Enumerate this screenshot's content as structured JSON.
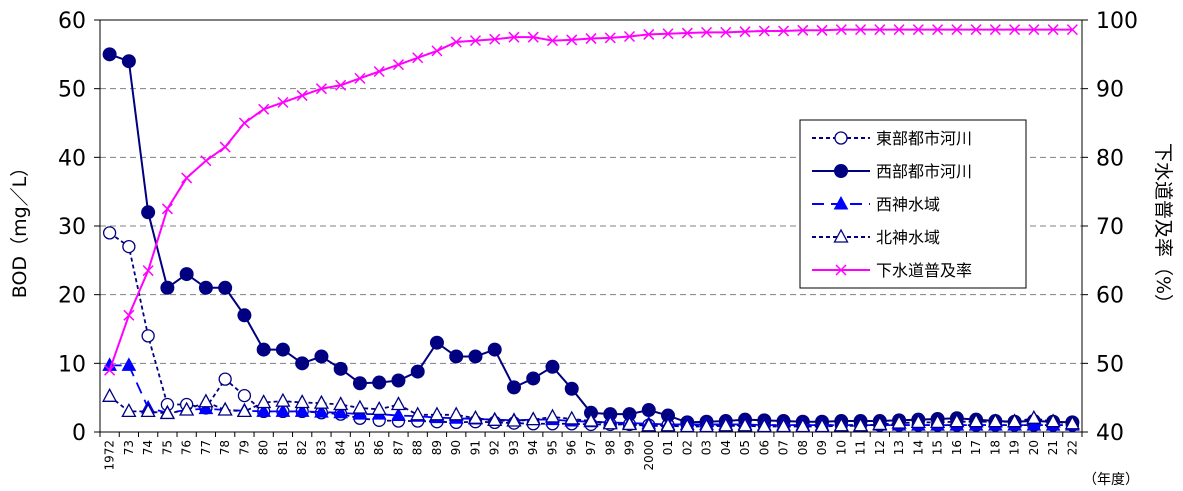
{
  "chart_data": {
    "type": "line",
    "x_labels": [
      "1972",
      "73",
      "74",
      "75",
      "76",
      "77",
      "78",
      "79",
      "80",
      "81",
      "82",
      "83",
      "84",
      "85",
      "86",
      "87",
      "88",
      "89",
      "90",
      "91",
      "92",
      "93",
      "94",
      "95",
      "96",
      "97",
      "98",
      "99",
      "2000",
      "01",
      "02",
      "03",
      "04",
      "05",
      "06",
      "07",
      "08",
      "09",
      "10",
      "11",
      "12",
      "13",
      "14",
      "15",
      "16",
      "17",
      "18",
      "19",
      "20",
      "21",
      "22"
    ],
    "x_unit_label": "（年度）",
    "ylabel_left": "BOD（mg／L）",
    "ylabel_right": "下水道普及率（%）",
    "ylim_left": [
      0,
      60
    ],
    "yticks_left": [
      0,
      10,
      20,
      30,
      40,
      50,
      60
    ],
    "ylim_right": [
      40,
      100
    ],
    "yticks_right": [
      40,
      50,
      60,
      70,
      80,
      90,
      100
    ],
    "grid": "horizontal dashed",
    "legend_position": "right",
    "series": [
      {
        "name": "東部都市河川",
        "axis": "left",
        "color": "#000080",
        "line": "dotted",
        "marker": "circle-open",
        "values": [
          29,
          27,
          14,
          4,
          4,
          3.5,
          7.7,
          5.3,
          3,
          3,
          3,
          2.8,
          2.6,
          2,
          1.7,
          1.6,
          1.6,
          1.5,
          1.4,
          1.5,
          1.4,
          1.3,
          1.2,
          1.2,
          1.2,
          1.1,
          1.1,
          1.1,
          1,
          1,
          1,
          1,
          1,
          1,
          1,
          1,
          1,
          1,
          1,
          1,
          1,
          1,
          1,
          1,
          1,
          1,
          1,
          1,
          1,
          1,
          1
        ]
      },
      {
        "name": "西部都市河川",
        "axis": "left",
        "color": "#000080",
        "line": "solid",
        "marker": "circle-filled",
        "values": [
          55,
          54,
          32,
          21,
          23,
          21,
          21,
          17,
          12,
          12,
          10,
          11,
          9.2,
          7.1,
          7.2,
          7.5,
          8.8,
          13,
          11,
          11,
          12,
          6.5,
          7.8,
          9.5,
          6.3,
          2.8,
          2.6,
          2.6,
          3.2,
          2.4,
          1.4,
          1.5,
          1.6,
          1.8,
          1.7,
          1.6,
          1.5,
          1.5,
          1.6,
          1.6,
          1.6,
          1.7,
          1.8,
          1.9,
          2,
          1.8,
          1.6,
          1.5,
          1.6,
          1.5,
          1.4
        ]
      },
      {
        "name": "西神水域",
        "axis": "left",
        "color": "#0000ff",
        "line": "dashed",
        "marker": "triangle-filled",
        "values": [
          9.7,
          9.7,
          3.5,
          2.8,
          3.2,
          3.4,
          3.2,
          3.1,
          3,
          3,
          3,
          2.9,
          2.8,
          2.6,
          2.6,
          2.4,
          2.3,
          2.1,
          2,
          1.9,
          1.8,
          1.7,
          1.8,
          1.8,
          1.6,
          1.5,
          1.4,
          1.3,
          1.2,
          1.1,
          1.1,
          1.1,
          1.1,
          1.1,
          1,
          1,
          1,
          1,
          1,
          1,
          1,
          1,
          1,
          1,
          1,
          1,
          1,
          1,
          1,
          1,
          1
        ]
      },
      {
        "name": "北神水域",
        "axis": "left",
        "color": "#000080",
        "line": "dotted",
        "marker": "triangle-open",
        "values": [
          5.2,
          3,
          3,
          2.7,
          3.2,
          4.4,
          3.2,
          3,
          4.3,
          4.5,
          4.3,
          4.2,
          4,
          3.5,
          3.3,
          4,
          2.5,
          2.5,
          2.5,
          2,
          1.7,
          1.6,
          1.8,
          2.2,
          1.9,
          1.6,
          1.2,
          1.1,
          0.9,
          0.9,
          0.8,
          0.8,
          0.9,
          0.9,
          0.8,
          0.8,
          0.8,
          0.8,
          0.9,
          0.9,
          1.1,
          1.3,
          1.4,
          1.4,
          1.5,
          1.5,
          1.5,
          1.5,
          2,
          1.5,
          1.2
        ]
      },
      {
        "name": "下水道普及率",
        "axis": "right",
        "color": "#ff00ff",
        "line": "solid",
        "marker": "x",
        "values": [
          49,
          57,
          63.5,
          72.5,
          77,
          79.5,
          81.5,
          85,
          87,
          88,
          89,
          90,
          90.5,
          91.5,
          92.5,
          93.5,
          94.5,
          95.5,
          96.8,
          97,
          97.2,
          97.5,
          97.5,
          97,
          97.1,
          97.3,
          97.4,
          97.6,
          97.9,
          98,
          98.1,
          98.2,
          98.2,
          98.3,
          98.4,
          98.4,
          98.5,
          98.5,
          98.6,
          98.6,
          98.6,
          98.6,
          98.6,
          98.6,
          98.6,
          98.6,
          98.6,
          98.6,
          98.6,
          98.6,
          98.6
        ]
      }
    ]
  }
}
